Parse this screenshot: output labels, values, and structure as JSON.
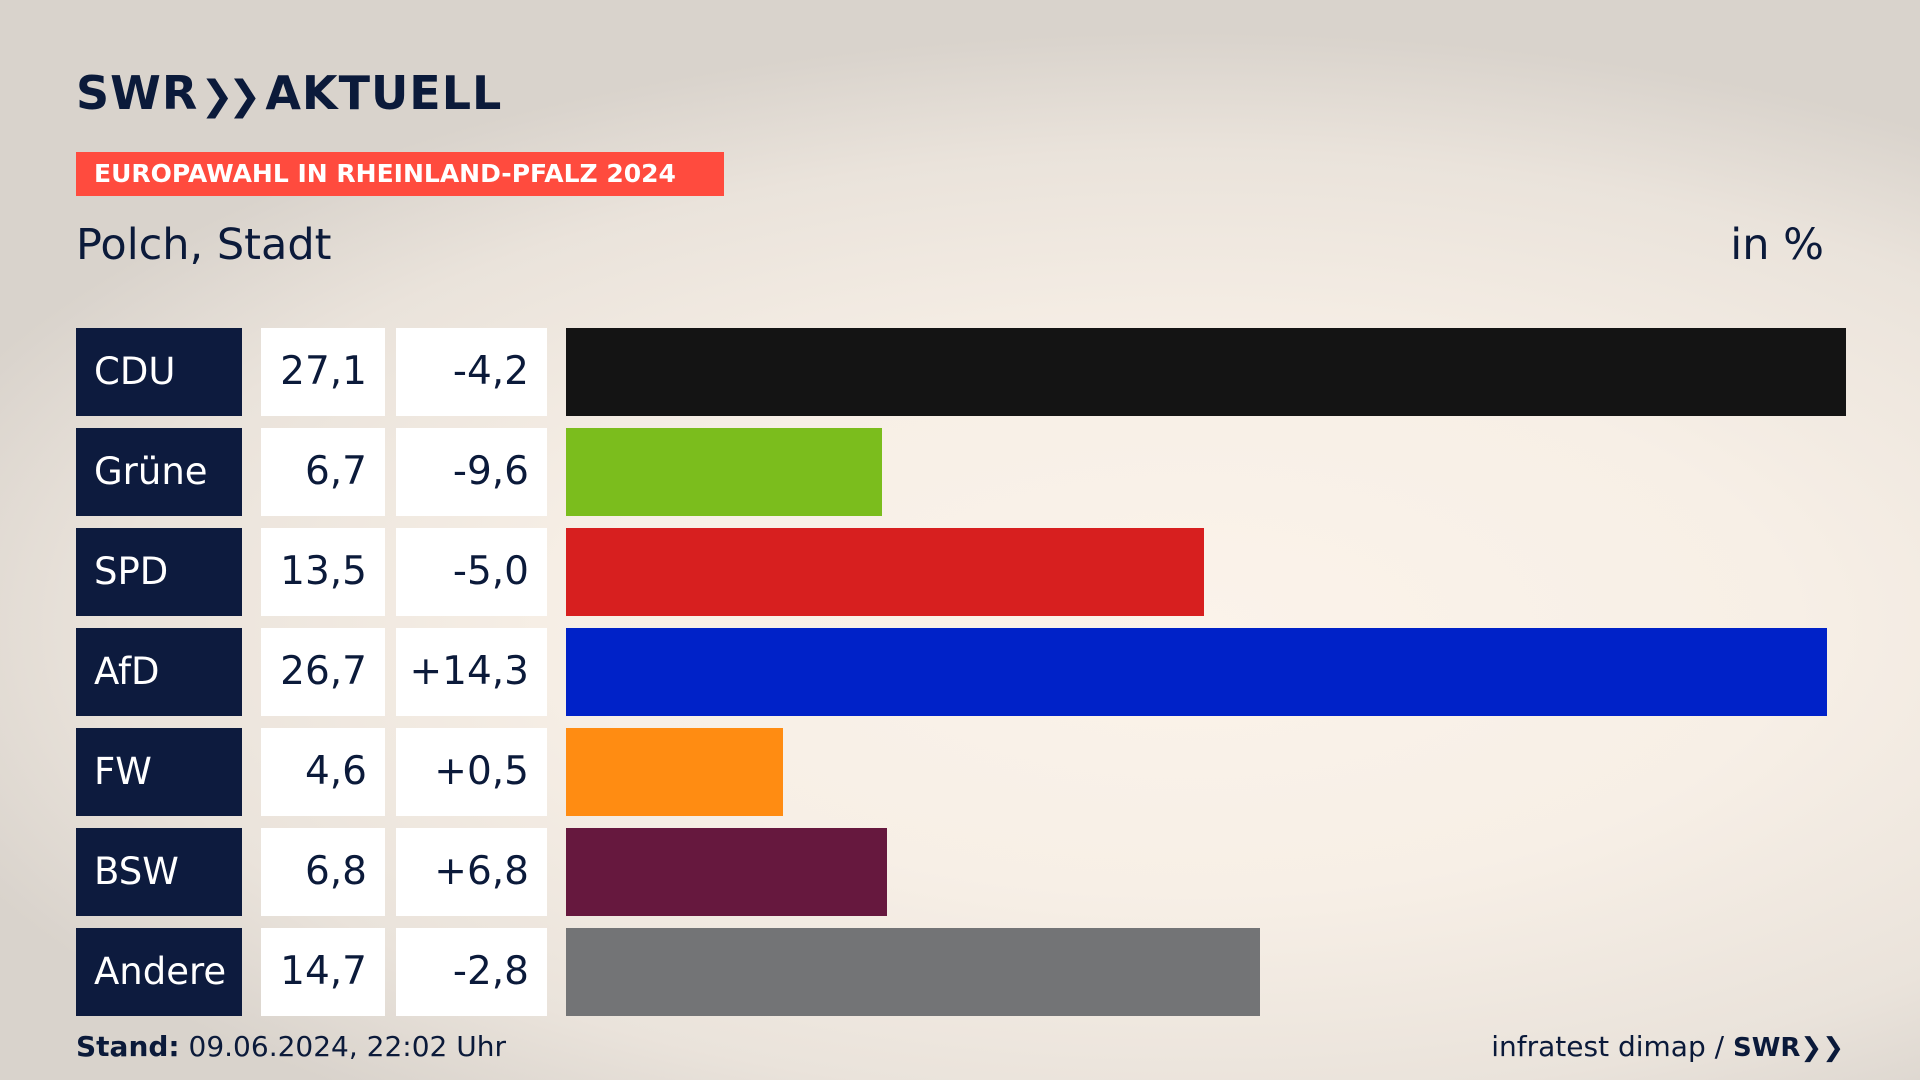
{
  "header": {
    "logo_swr": "SWR",
    "logo_aktuell": "AKTUELL",
    "banner": "EUROPAWAHL IN RHEINLAND-PFALZ 2024",
    "subtitle": "Polch, Stadt",
    "unit": "in %"
  },
  "colors": {
    "banner": "#ff4b3e",
    "party_box": "#0d1b3e",
    "text": "#0b1a3a"
  },
  "chart_data": {
    "type": "bar",
    "orientation": "horizontal",
    "title": "Polch, Stadt",
    "unit": "in %",
    "categories": [
      "CDU",
      "Grüne",
      "SPD",
      "AfD",
      "FW",
      "BSW",
      "Andere"
    ],
    "values": [
      27.1,
      6.7,
      13.5,
      26.7,
      4.6,
      6.8,
      14.7
    ],
    "value_labels": [
      "27,1",
      "6,7",
      "13,5",
      "26,7",
      "4,6",
      "6,8",
      "14,7"
    ],
    "change_labels": [
      "-4,2",
      "-9,6",
      "-5,0",
      "+14,3",
      "+0,5",
      "+6,8",
      "-2,8"
    ],
    "changes": [
      -4.2,
      -9.6,
      -5.0,
      14.3,
      0.5,
      6.8,
      -2.8
    ],
    "bar_colors": [
      "#141414",
      "#7bbd1d",
      "#d71f1f",
      "#0022c8",
      "#ff8c12",
      "#66183e",
      "#737476"
    ],
    "xlim": [
      0,
      27.1
    ]
  },
  "footer": {
    "stand_label": "Stand:",
    "stand_value": "09.06.2024, 22:02 Uhr",
    "source": "infratest dimap /",
    "source_logo": "SWR"
  }
}
